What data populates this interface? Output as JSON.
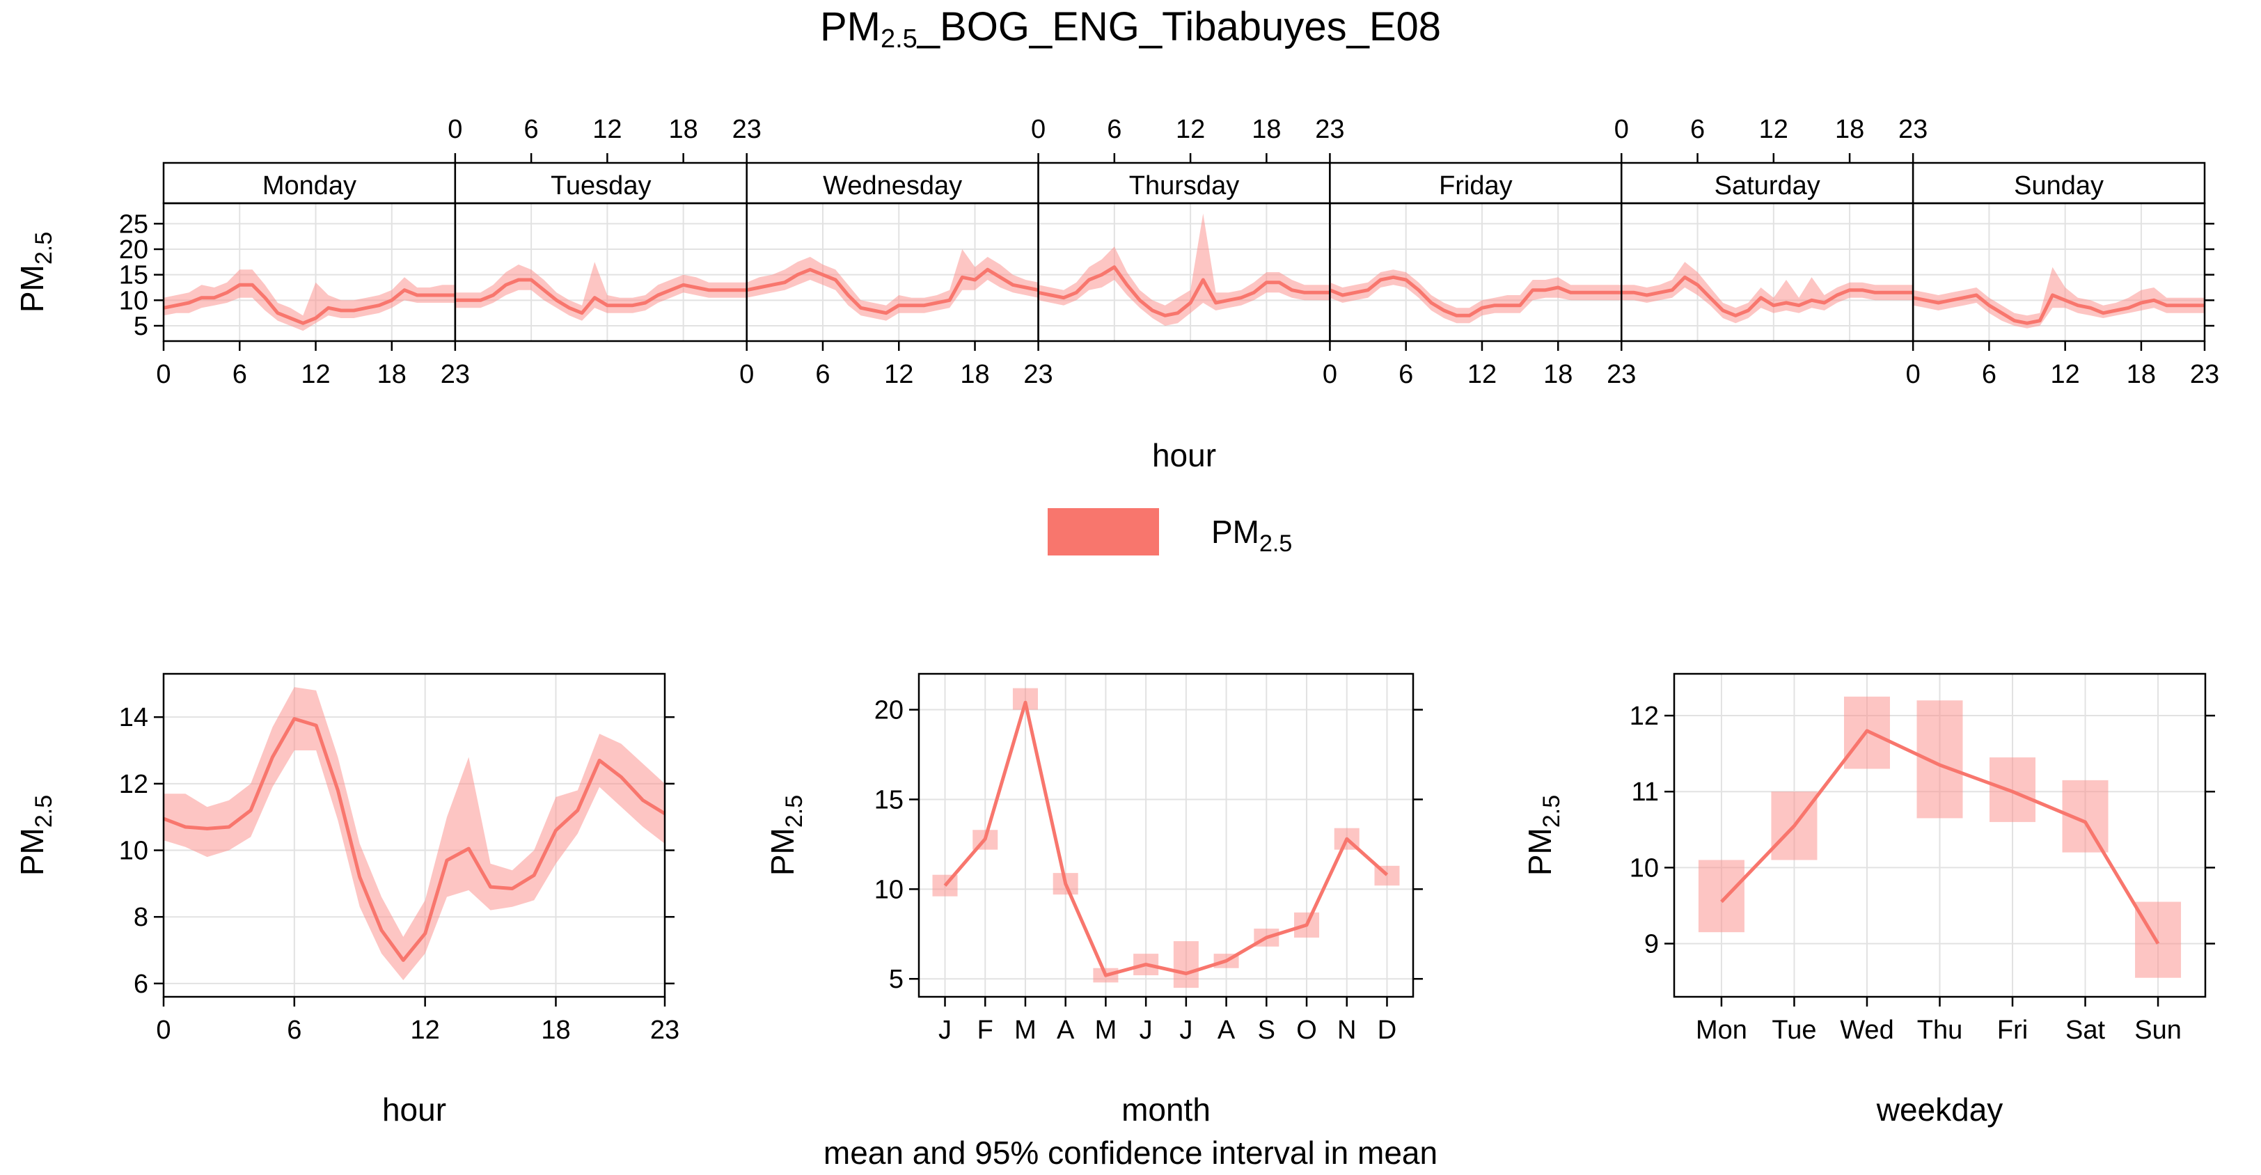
{
  "page": {
    "title_main": "PM",
    "title_sub": "2.5",
    "title_rest": "_BOG_ENG_Tibabuyes_E08",
    "subtitle": "mean and 95% confidence interval in mean",
    "legend": {
      "label_main": "PM",
      "label_sub": "2.5"
    }
  },
  "colors": {
    "line": "#f8766d",
    "band": "#fb8c87",
    "grid": "#e2e2e2"
  },
  "chart_data": [
    {
      "type": "line",
      "panel": "day-hour",
      "xlabel": "hour",
      "ylabel_main": "PM",
      "ylabel_sub": "2.5",
      "ylim": [
        2,
        29
      ],
      "y_ticks": [
        5,
        10,
        15,
        20,
        25
      ],
      "x_ticks": [
        0,
        6,
        12,
        18,
        23
      ],
      "xlim": [
        0,
        23
      ],
      "days": [
        {
          "name": "Monday",
          "mean": [
            8.5,
            9.0,
            9.5,
            10.5,
            10.5,
            11.5,
            13.0,
            13.0,
            10.5,
            7.5,
            6.5,
            5.5,
            6.5,
            8.5,
            8.0,
            8.0,
            8.5,
            9.0,
            10.0,
            12.0,
            11.0,
            11.0,
            11.0,
            11.0
          ],
          "upper": [
            10.5,
            11.0,
            11.5,
            13.0,
            12.5,
            13.5,
            16.0,
            16.0,
            13.0,
            9.5,
            8.5,
            7.0,
            13.5,
            11.0,
            10.0,
            10.0,
            10.5,
            11.0,
            12.0,
            14.5,
            12.5,
            12.5,
            13.0,
            13.0
          ],
          "lower": [
            7.0,
            7.5,
            7.5,
            8.5,
            9.0,
            9.5,
            10.5,
            10.5,
            8.0,
            6.0,
            5.0,
            4.0,
            5.5,
            7.0,
            6.5,
            6.5,
            7.0,
            7.5,
            8.5,
            10.0,
            9.5,
            9.5,
            9.5,
            9.5
          ]
        },
        {
          "name": "Tuesday",
          "mean": [
            10.0,
            10.0,
            10.0,
            11.0,
            13.0,
            14.0,
            14.0,
            12.0,
            10.0,
            8.5,
            7.5,
            10.5,
            9.0,
            9.0,
            9.0,
            9.5,
            11.0,
            12.0,
            13.0,
            12.5,
            12.0,
            12.0,
            12.0,
            12.0
          ],
          "upper": [
            11.5,
            11.5,
            11.5,
            13.0,
            15.5,
            17.0,
            16.0,
            14.0,
            11.5,
            10.0,
            9.0,
            17.5,
            11.0,
            10.5,
            10.5,
            11.0,
            13.0,
            14.0,
            15.0,
            14.5,
            13.5,
            13.5,
            13.5,
            13.5
          ],
          "lower": [
            8.5,
            8.5,
            8.5,
            9.5,
            11.0,
            12.0,
            12.0,
            10.0,
            8.5,
            7.0,
            6.0,
            8.5,
            7.5,
            7.5,
            7.5,
            8.0,
            9.5,
            10.5,
            11.5,
            11.0,
            10.5,
            10.5,
            10.5,
            10.5
          ]
        },
        {
          "name": "Wednesday",
          "mean": [
            12.0,
            12.5,
            13.0,
            13.5,
            15.0,
            16.0,
            15.0,
            14.0,
            11.0,
            8.5,
            8.0,
            7.5,
            9.0,
            9.0,
            9.0,
            9.5,
            10.0,
            14.5,
            14.0,
            16.0,
            14.5,
            13.0,
            12.5,
            12.0
          ],
          "upper": [
            13.5,
            14.5,
            15.0,
            16.0,
            17.5,
            18.5,
            17.0,
            16.0,
            13.0,
            10.0,
            9.5,
            9.0,
            11.0,
            10.5,
            10.5,
            11.0,
            12.0,
            20.0,
            16.5,
            18.5,
            17.0,
            15.0,
            14.0,
            13.5
          ],
          "lower": [
            10.5,
            11.0,
            11.5,
            12.0,
            13.0,
            14.0,
            13.0,
            12.0,
            9.0,
            7.0,
            6.5,
            6.0,
            7.5,
            7.5,
            7.5,
            8.0,
            8.5,
            12.0,
            12.0,
            14.0,
            12.5,
            11.5,
            11.0,
            10.5
          ]
        },
        {
          "name": "Thursday",
          "mean": [
            11.5,
            11.0,
            10.5,
            11.5,
            14.0,
            15.0,
            16.5,
            13.0,
            10.0,
            8.0,
            7.0,
            7.5,
            9.5,
            14.0,
            9.5,
            10.0,
            10.5,
            11.5,
            13.5,
            13.5,
            12.0,
            11.5,
            11.5,
            11.5
          ],
          "upper": [
            13.0,
            12.5,
            12.0,
            13.5,
            16.5,
            18.0,
            20.5,
            15.5,
            12.0,
            10.0,
            9.0,
            10.5,
            12.0,
            27.0,
            11.5,
            11.5,
            12.0,
            13.5,
            15.5,
            15.5,
            14.0,
            13.0,
            13.0,
            13.0
          ],
          "lower": [
            10.0,
            9.5,
            9.0,
            10.0,
            12.0,
            12.5,
            14.0,
            11.0,
            8.5,
            6.5,
            5.0,
            5.5,
            7.5,
            9.5,
            8.0,
            8.5,
            9.0,
            10.0,
            11.5,
            11.5,
            10.5,
            10.0,
            10.0,
            10.0
          ]
        },
        {
          "name": "Friday",
          "mean": [
            12.0,
            11.0,
            11.5,
            12.0,
            14.0,
            14.5,
            14.0,
            12.0,
            9.5,
            8.0,
            7.0,
            7.0,
            8.5,
            9.0,
            9.0,
            9.0,
            12.0,
            12.0,
            12.5,
            11.5,
            11.5,
            11.5,
            11.5,
            11.5
          ],
          "upper": [
            13.5,
            12.5,
            13.0,
            13.5,
            15.5,
            16.0,
            15.5,
            13.5,
            11.0,
            9.5,
            8.5,
            8.5,
            10.0,
            10.5,
            11.0,
            11.0,
            14.0,
            14.0,
            14.5,
            13.0,
            13.0,
            13.0,
            13.0,
            13.0
          ],
          "lower": [
            10.5,
            9.5,
            10.0,
            10.5,
            12.5,
            13.0,
            12.5,
            10.5,
            8.0,
            6.5,
            5.5,
            5.5,
            7.0,
            7.5,
            7.5,
            7.5,
            10.0,
            10.5,
            10.5,
            10.0,
            10.0,
            10.0,
            10.0,
            10.0
          ]
        },
        {
          "name": "Saturday",
          "mean": [
            11.5,
            11.5,
            11.0,
            11.5,
            12.0,
            14.5,
            13.0,
            10.5,
            8.0,
            7.0,
            8.0,
            10.5,
            9.0,
            9.5,
            9.0,
            10.0,
            9.5,
            11.0,
            12.0,
            12.0,
            11.5,
            11.5,
            11.5,
            11.5
          ],
          "upper": [
            13.0,
            13.0,
            12.5,
            13.0,
            14.0,
            17.5,
            15.5,
            12.5,
            9.5,
            8.5,
            9.5,
            12.5,
            10.5,
            14.0,
            10.5,
            14.5,
            11.0,
            12.5,
            13.5,
            13.5,
            13.0,
            13.0,
            13.0,
            13.0
          ],
          "lower": [
            10.0,
            10.0,
            9.5,
            10.0,
            10.5,
            12.5,
            11.0,
            9.0,
            6.5,
            5.5,
            6.5,
            8.5,
            7.5,
            8.0,
            7.5,
            8.5,
            8.0,
            9.5,
            10.5,
            10.5,
            10.0,
            10.0,
            10.0,
            10.0
          ]
        },
        {
          "name": "Sunday",
          "mean": [
            10.5,
            10.0,
            9.5,
            10.0,
            10.5,
            11.0,
            9.0,
            7.5,
            6.0,
            5.5,
            6.0,
            11.0,
            10.0,
            9.0,
            8.5,
            7.5,
            8.0,
            8.5,
            9.5,
            10.0,
            9.0,
            9.0,
            9.0,
            9.0
          ],
          "upper": [
            12.0,
            11.5,
            11.0,
            11.5,
            12.0,
            12.5,
            10.5,
            9.0,
            7.5,
            7.0,
            7.5,
            16.5,
            12.5,
            10.5,
            10.0,
            9.0,
            9.5,
            10.5,
            12.0,
            12.5,
            10.5,
            10.5,
            10.5,
            10.5
          ],
          "lower": [
            9.0,
            8.5,
            8.0,
            8.5,
            9.0,
            9.5,
            7.5,
            6.0,
            5.0,
            4.5,
            5.0,
            8.5,
            8.5,
            7.5,
            7.0,
            6.5,
            7.0,
            7.5,
            8.0,
            8.5,
            7.5,
            7.5,
            7.5,
            7.5
          ]
        }
      ]
    },
    {
      "type": "line",
      "panel": "hour",
      "xlabel": "hour",
      "ylabel_main": "PM",
      "ylabel_sub": "2.5",
      "xlim": [
        0,
        23
      ],
      "ylim": [
        5.6,
        15.3
      ],
      "x_ticks": [
        0,
        6,
        12,
        18,
        23
      ],
      "y_ticks": [
        6,
        8,
        10,
        12,
        14
      ],
      "x": [
        0,
        1,
        2,
        3,
        4,
        5,
        6,
        7,
        8,
        9,
        10,
        11,
        12,
        13,
        14,
        15,
        16,
        17,
        18,
        19,
        20,
        21,
        22,
        23
      ],
      "mean": [
        10.95,
        10.7,
        10.65,
        10.7,
        11.2,
        12.8,
        13.95,
        13.75,
        11.8,
        9.2,
        7.6,
        6.7,
        7.5,
        9.7,
        10.05,
        8.9,
        8.85,
        9.25,
        10.6,
        11.2,
        12.7,
        12.2,
        11.5,
        11.1
      ],
      "upper": [
        11.7,
        11.7,
        11.3,
        11.5,
        12.0,
        13.7,
        14.9,
        14.8,
        12.8,
        10.2,
        8.6,
        7.4,
        8.5,
        11.0,
        12.8,
        9.6,
        9.4,
        10.0,
        11.6,
        11.8,
        13.5,
        13.2,
        12.6,
        12.0
      ],
      "lower": [
        10.3,
        10.1,
        9.8,
        10.0,
        10.4,
        11.9,
        13.0,
        13.0,
        10.9,
        8.3,
        6.9,
        6.1,
        6.9,
        8.6,
        8.8,
        8.2,
        8.3,
        8.5,
        9.6,
        10.5,
        11.9,
        11.3,
        10.7,
        10.2
      ]
    },
    {
      "type": "line",
      "panel": "month",
      "xlabel": "month",
      "ylabel_main": "PM",
      "ylabel_sub": "2.5",
      "ylim": [
        4.0,
        22.0
      ],
      "y_ticks": [
        5,
        10,
        15,
        20
      ],
      "categories": [
        "J",
        "F",
        "M",
        "A",
        "M",
        "J",
        "J",
        "A",
        "S",
        "O",
        "N",
        "D"
      ],
      "mean": [
        10.2,
        12.8,
        20.4,
        10.3,
        5.2,
        5.8,
        5.3,
        6.0,
        7.3,
        8.0,
        12.8,
        10.8
      ],
      "upper": [
        10.8,
        13.3,
        21.2,
        10.9,
        5.6,
        6.4,
        7.1,
        6.4,
        7.8,
        8.7,
        13.4,
        11.3
      ],
      "lower": [
        9.6,
        12.2,
        20.0,
        9.7,
        4.8,
        5.2,
        4.5,
        5.6,
        6.8,
        7.3,
        12.2,
        10.2
      ]
    },
    {
      "type": "line",
      "panel": "weekday",
      "xlabel": "weekday",
      "ylabel_main": "PM",
      "ylabel_sub": "2.5",
      "ylim": [
        8.3,
        12.55
      ],
      "y_ticks": [
        9,
        10,
        11,
        12
      ],
      "categories": [
        "Mon",
        "Tue",
        "Wed",
        "Thu",
        "Fri",
        "Sat",
        "Sun"
      ],
      "mean": [
        9.55,
        10.55,
        11.8,
        11.35,
        11.0,
        10.6,
        9.0
      ],
      "upper": [
        10.1,
        11.0,
        12.25,
        12.2,
        11.45,
        11.15,
        9.55
      ],
      "lower": [
        9.15,
        10.1,
        11.3,
        10.65,
        10.6,
        10.2,
        8.55
      ]
    }
  ]
}
